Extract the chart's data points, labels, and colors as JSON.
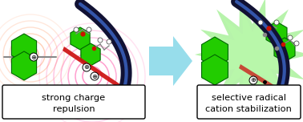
{
  "fig_width": 3.78,
  "fig_height": 1.52,
  "dpi": 100,
  "bg_color": "#ffffff",
  "left_label_line1": "strong charge",
  "left_label_line2": "repulsion",
  "right_label_line1": "selective radical",
  "right_label_line2": "cation stabilization",
  "label_fontsize": 8.2,
  "arrow_color": "#85d8e8",
  "green_color": "#22cc00",
  "green_edge": "#008800",
  "pink_color": "#ff70b0",
  "orange_color": "#ff9966",
  "red_bar_color": "#cc1111",
  "crown_dark": "#111133",
  "crown_blue": "#3355aa"
}
